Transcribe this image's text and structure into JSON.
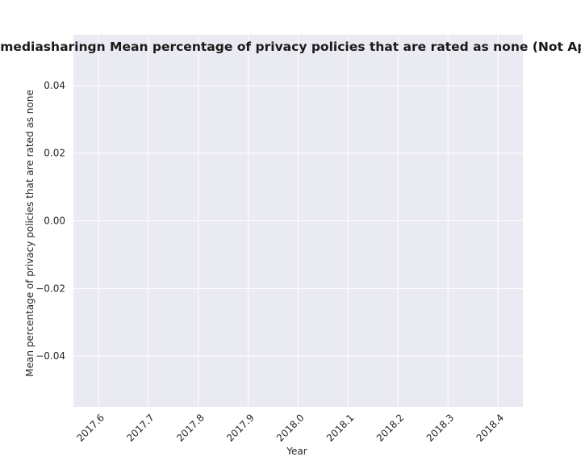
{
  "chart_data": {
    "type": "line",
    "title": "ontech;mediasharingn Mean percentage of privacy policies that are rated as none (Not Applicable)",
    "xlabel": "Year",
    "ylabel": "Mean percentage of privacy policies that are rated as none",
    "xlim": [
      2017.55,
      2018.45
    ],
    "ylim": [
      -0.055,
      0.055
    ],
    "x_ticks": [
      2017.6,
      2017.7,
      2017.8,
      2017.9,
      2018.0,
      2018.1,
      2018.2,
      2018.3,
      2018.4
    ],
    "x_tick_labels": [
      "2017.6",
      "2017.7",
      "2017.8",
      "2017.9",
      "2018.0",
      "2018.1",
      "2018.2",
      "2018.3",
      "2018.4"
    ],
    "y_ticks": [
      -0.04,
      -0.02,
      0.0,
      0.02,
      0.04
    ],
    "y_tick_labels": [
      "−0.04",
      "−0.02",
      "0.00",
      "0.02",
      "0.04"
    ],
    "series": [],
    "grid": true,
    "background": "#eaeaf2",
    "grid_color": "#ffffff"
  }
}
